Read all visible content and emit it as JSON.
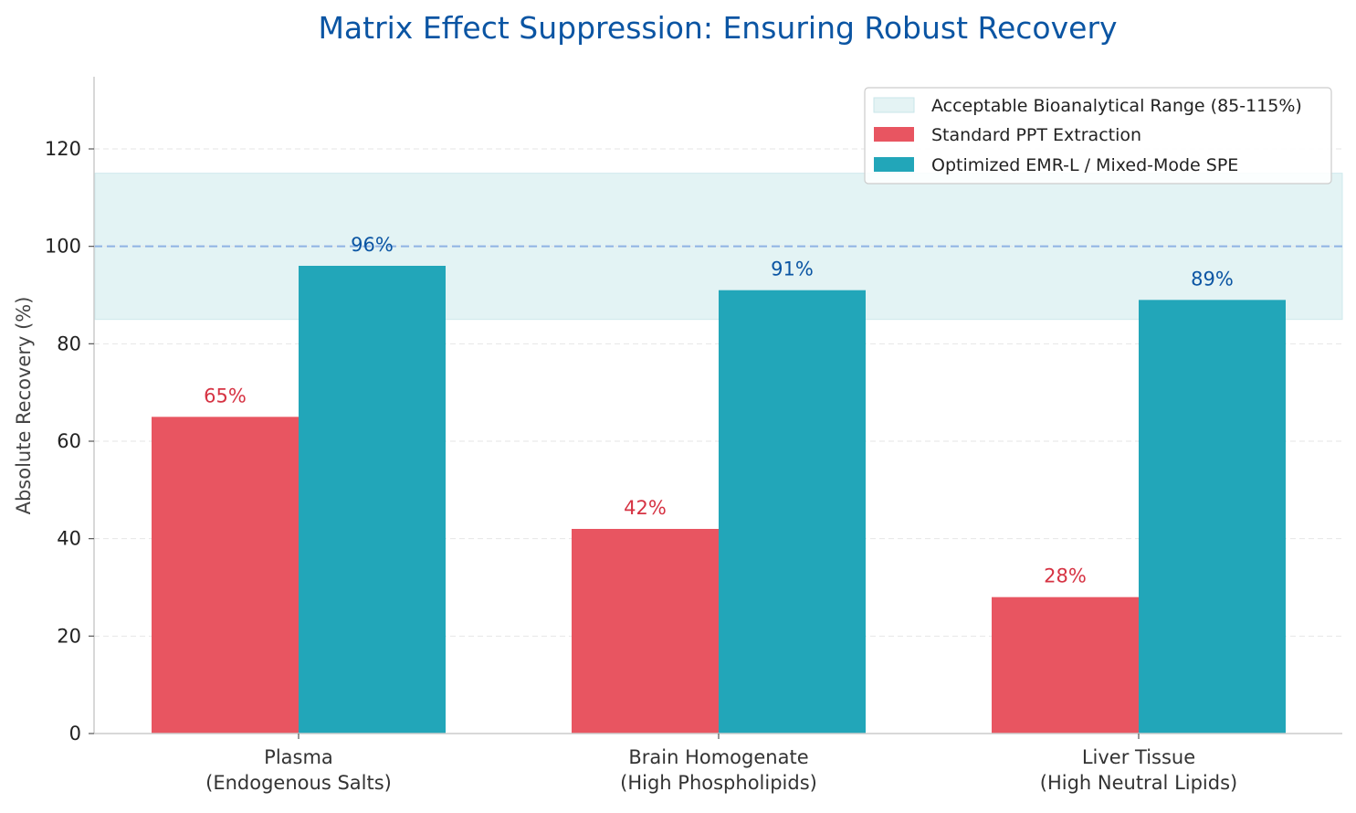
{
  "chart_data": {
    "type": "bar",
    "title": "Matrix Effect Suppression: Ensuring Robust Recovery",
    "ylabel": "Absolute Recovery (%)",
    "xlabel": "",
    "ylim": [
      0,
      135
    ],
    "yticks": [
      0,
      20,
      40,
      60,
      80,
      100,
      120
    ],
    "grid": true,
    "legend_position": "top-right",
    "categories": [
      [
        "Plasma",
        "(Endogenous Salts)"
      ],
      [
        "Brain Homogenate",
        "(High Phospholipids)"
      ],
      [
        "Liver Tissue",
        "(High Neutral Lipids)"
      ]
    ],
    "series": [
      {
        "name": "Standard PPT Extraction",
        "values": [
          65,
          42,
          28
        ],
        "labels": [
          "65%",
          "42%",
          "28%"
        ],
        "color": "#e85561",
        "label_color": "#d63343"
      },
      {
        "name": "Optimized EMR-L / Mixed-Mode SPE",
        "values": [
          96,
          91,
          89
        ],
        "labels": [
          "96%",
          "91%",
          "89%"
        ],
        "color": "#22a6b9",
        "label_color": "#0b55a3"
      }
    ],
    "band": {
      "name": "Acceptable Bioanalytical Range (85-115%)",
      "range": [
        85,
        115
      ],
      "color": "#d7eef0"
    },
    "reference_line": {
      "value": 100,
      "color": "#8fb3e3"
    }
  }
}
